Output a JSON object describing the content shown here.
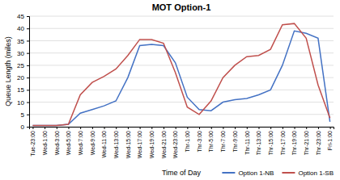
{
  "chart_data": {
    "type": "line",
    "title": "MOT Option-1",
    "xlabel": "Time of Day",
    "ylabel": "Queue Length (miles)",
    "categories": [
      "Tue-23:00",
      "Wed-1:00",
      "Wed-3:00",
      "Wed-5:00",
      "Wed-7:00",
      "Wed-9:00",
      "Wed-11:00",
      "Wed-13:00",
      "Wed-15:00",
      "Wed-17:00",
      "Wed-19:00",
      "Wed-21:00",
      "Wed-23:00",
      "Thr-1:00",
      "Thr-3:00",
      "Thr-5:00",
      "Thr-7:00",
      "Thr-9:00",
      "Thr-11:00",
      "Thr-13:00",
      "Thr-15:00",
      "Thr-17:00",
      "Thr-19:00",
      "Thr-21:00",
      "Thr-23:00",
      "Fri-1:00"
    ],
    "series": [
      {
        "name": "Option 1-NB",
        "color": "#4472C4",
        "values": [
          0.5,
          0.5,
          0.5,
          1.0,
          5.5,
          7.0,
          8.5,
          10.5,
          20.0,
          33.0,
          33.5,
          33.0,
          26.0,
          12.0,
          7.0,
          6.5,
          10.0,
          11.0,
          11.5,
          13.0,
          15.0,
          25.0,
          39.0,
          38.0,
          36.0,
          2.0
        ]
      },
      {
        "name": "Option 1-SB",
        "color": "#C0504D",
        "values": [
          0.5,
          0.5,
          0.5,
          1.0,
          13.0,
          18.0,
          20.5,
          23.5,
          29.0,
          35.5,
          35.5,
          34.0,
          22.0,
          8.0,
          5.0,
          10.5,
          20.0,
          25.0,
          28.5,
          29.0,
          31.5,
          41.5,
          42.0,
          36.0,
          17.0,
          3.5
        ]
      }
    ],
    "ylim": [
      0,
      45
    ],
    "yticks": [
      0,
      5,
      10,
      15,
      20,
      25,
      30,
      35,
      40,
      45
    ],
    "grid": true,
    "legend": "lower right"
  }
}
